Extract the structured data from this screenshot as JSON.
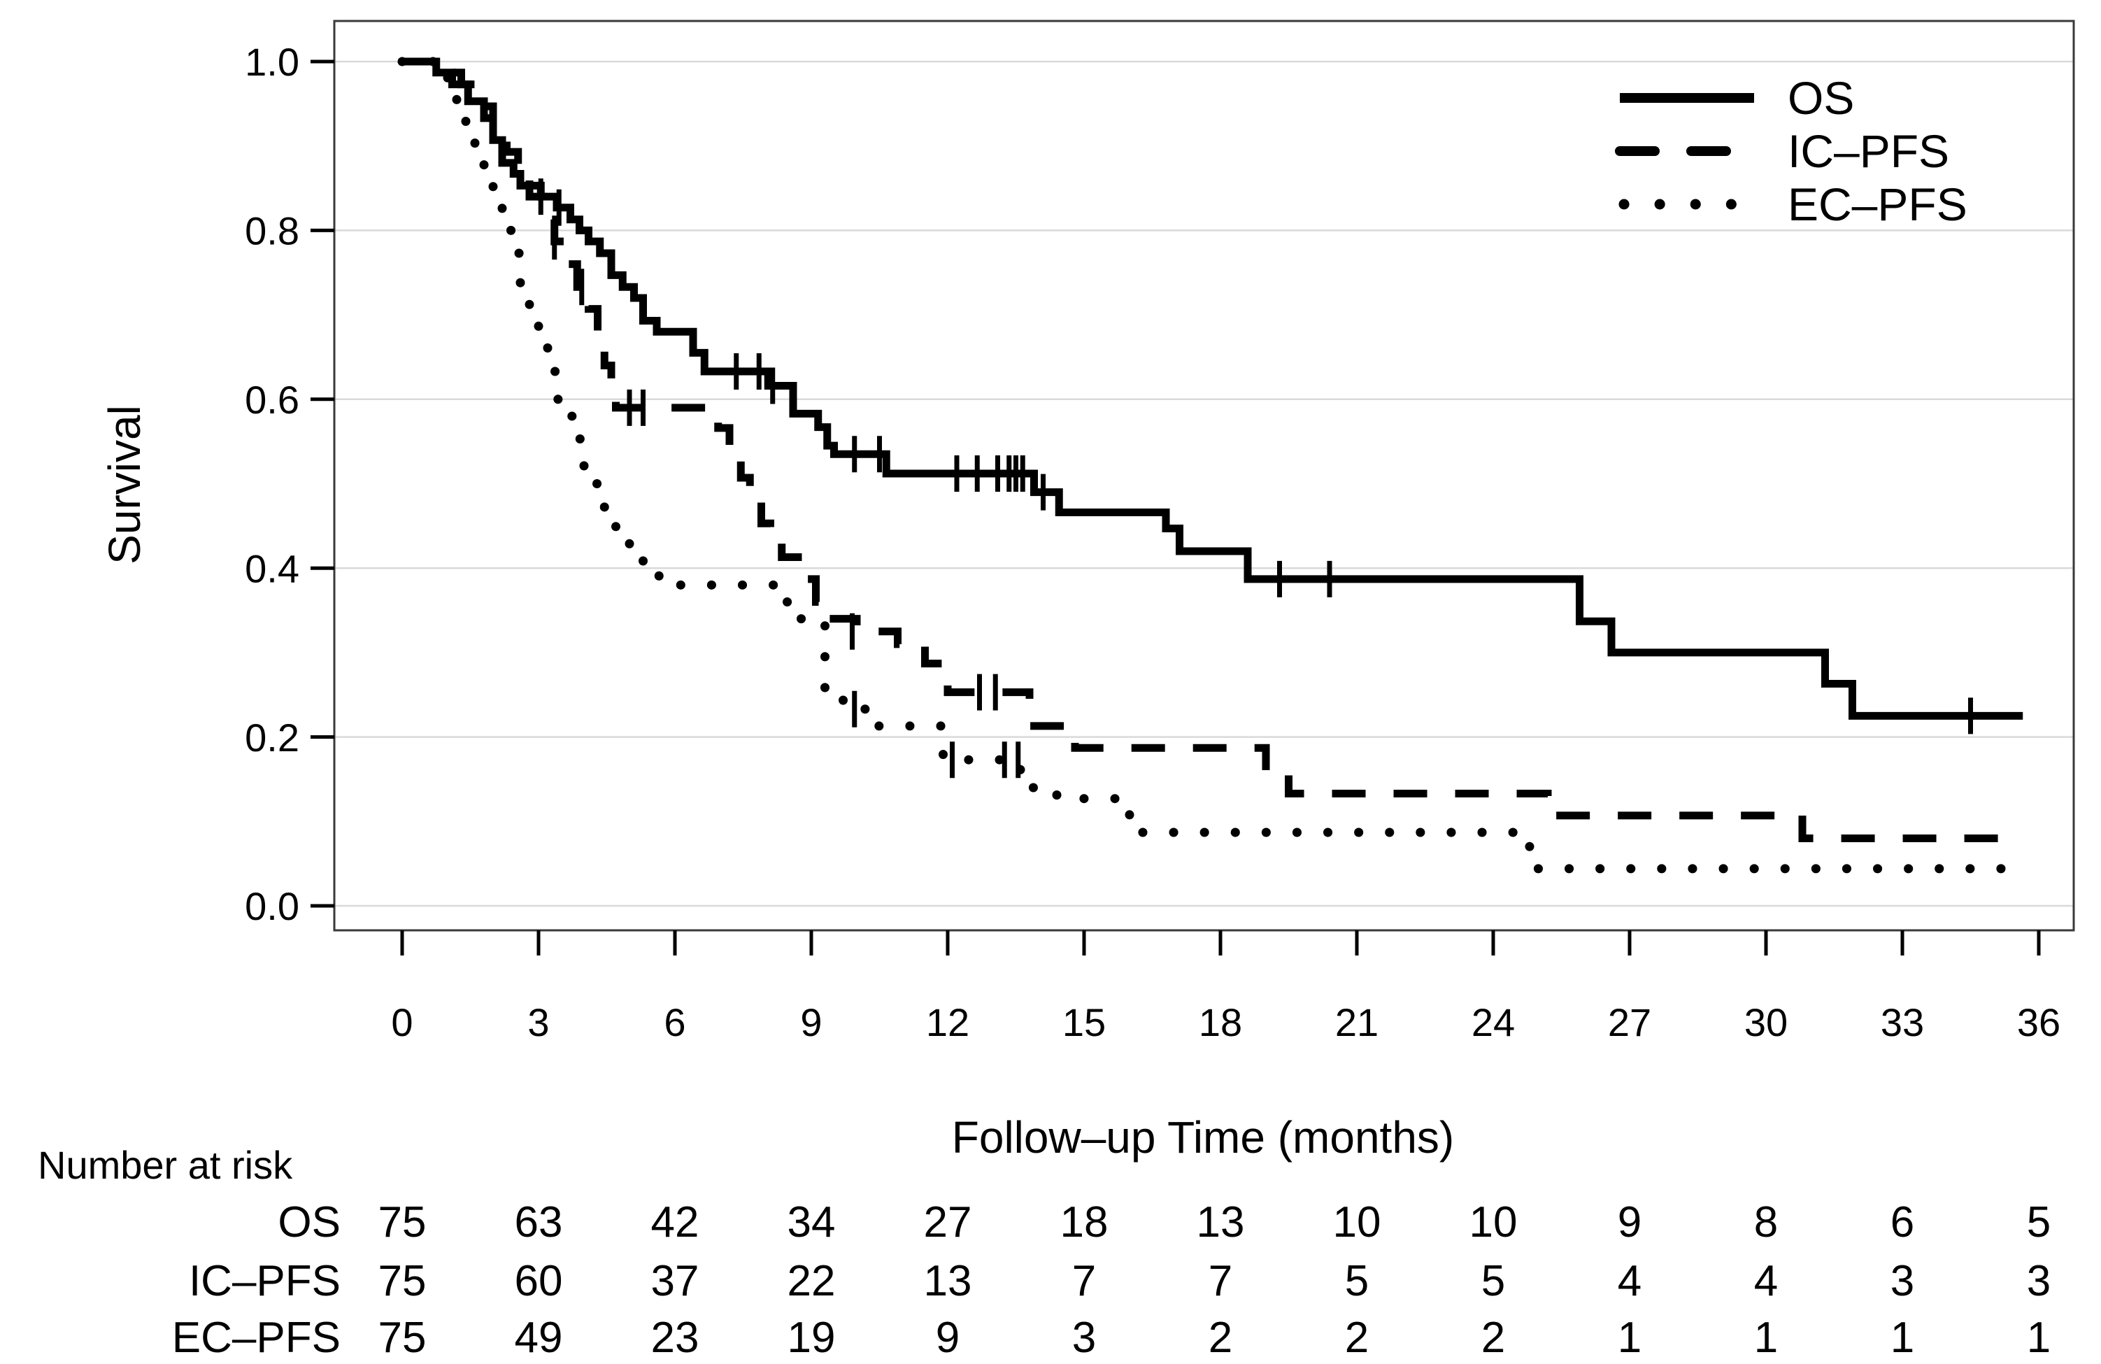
{
  "chart_data": {
    "type": "line",
    "subtype": "kaplan-meier-step",
    "title": "",
    "xlabel": "Follow–up Time (months)",
    "ylabel": "Survival",
    "xlim": [
      0,
      36
    ],
    "ylim": [
      0.0,
      1.0
    ],
    "xticks": [
      0,
      3,
      6,
      9,
      12,
      15,
      18,
      21,
      24,
      27,
      30,
      33,
      36
    ],
    "yticks": [
      0.0,
      0.2,
      0.4,
      0.6,
      0.8,
      1.0
    ],
    "ytick_labels": [
      "0.0",
      "0.2",
      "0.4",
      "0.6",
      "0.8",
      "1.0"
    ],
    "grid": "horizontal-light-gray",
    "legend_position": "top-right",
    "series": [
      {
        "name": "OS",
        "style": "solid",
        "steps": [
          [
            0,
            1.0
          ],
          [
            0.75,
            0.987
          ],
          [
            1.1,
            0.973
          ],
          [
            1.45,
            0.953
          ],
          [
            1.8,
            0.933
          ],
          [
            2.0,
            0.907
          ],
          [
            2.2,
            0.88
          ],
          [
            2.45,
            0.867
          ],
          [
            2.6,
            0.853
          ],
          [
            3.05,
            0.84
          ],
          [
            3.4,
            0.827
          ],
          [
            3.7,
            0.813
          ],
          [
            3.9,
            0.8
          ],
          [
            4.1,
            0.787
          ],
          [
            4.35,
            0.773
          ],
          [
            4.6,
            0.747
          ],
          [
            4.85,
            0.733
          ],
          [
            5.1,
            0.72
          ],
          [
            5.3,
            0.693
          ],
          [
            5.6,
            0.68
          ],
          [
            6.4,
            0.655
          ],
          [
            6.65,
            0.633
          ],
          [
            8.05,
            0.616
          ],
          [
            8.6,
            0.583
          ],
          [
            9.15,
            0.567
          ],
          [
            9.35,
            0.545
          ],
          [
            9.5,
            0.535
          ],
          [
            10.65,
            0.512
          ],
          [
            13.9,
            0.49
          ],
          [
            14.45,
            0.466
          ],
          [
            16.8,
            0.447
          ],
          [
            17.1,
            0.42
          ],
          [
            18.6,
            0.387
          ],
          [
            25.9,
            0.337
          ],
          [
            26.6,
            0.3
          ],
          [
            31.3,
            0.263
          ],
          [
            31.9,
            0.225
          ]
        ],
        "end": 35.65,
        "censors": [
          [
            3.05,
            0.84
          ],
          [
            3.45,
            0.827
          ],
          [
            7.35,
            0.633
          ],
          [
            7.85,
            0.633
          ],
          [
            8.15,
            0.616
          ],
          [
            9.95,
            0.535
          ],
          [
            10.5,
            0.535
          ],
          [
            12.2,
            0.512
          ],
          [
            12.65,
            0.512
          ],
          [
            13.1,
            0.512
          ],
          [
            13.35,
            0.512
          ],
          [
            13.5,
            0.512
          ],
          [
            13.65,
            0.512
          ],
          [
            14.1,
            0.49
          ],
          [
            19.3,
            0.387
          ],
          [
            20.4,
            0.387
          ],
          [
            34.5,
            0.225
          ]
        ]
      },
      {
        "name": "IC–PFS",
        "style": "dashed",
        "steps": [
          [
            0,
            1.0
          ],
          [
            0.9,
            0.987
          ],
          [
            1.3,
            0.973
          ],
          [
            1.7,
            0.947
          ],
          [
            2.0,
            0.92
          ],
          [
            2.3,
            0.893
          ],
          [
            2.55,
            0.867
          ],
          [
            2.8,
            0.84
          ],
          [
            3.1,
            0.813
          ],
          [
            3.35,
            0.787
          ],
          [
            3.6,
            0.76
          ],
          [
            3.85,
            0.733
          ],
          [
            4.1,
            0.707
          ],
          [
            4.3,
            0.68
          ],
          [
            4.45,
            0.64
          ],
          [
            4.6,
            0.62
          ],
          [
            4.7,
            0.59
          ],
          [
            6.95,
            0.566
          ],
          [
            7.2,
            0.533
          ],
          [
            7.45,
            0.507
          ],
          [
            7.65,
            0.48
          ],
          [
            7.9,
            0.453
          ],
          [
            8.1,
            0.433
          ],
          [
            8.35,
            0.413
          ],
          [
            8.85,
            0.387
          ],
          [
            9.1,
            0.36
          ],
          [
            9.3,
            0.34
          ],
          [
            10.0,
            0.325
          ],
          [
            10.9,
            0.31
          ],
          [
            11.5,
            0.287
          ],
          [
            12.0,
            0.253
          ],
          [
            13.8,
            0.213
          ],
          [
            14.8,
            0.187
          ],
          [
            19.0,
            0.16
          ],
          [
            19.5,
            0.133
          ],
          [
            25.2,
            0.107
          ],
          [
            30.8,
            0.08
          ]
        ],
        "end": 35.3,
        "censors": [
          [
            3.35,
            0.787
          ],
          [
            3.95,
            0.733
          ],
          [
            5.0,
            0.59
          ],
          [
            5.3,
            0.59
          ],
          [
            9.9,
            0.325
          ],
          [
            12.7,
            0.253
          ],
          [
            13.05,
            0.253
          ]
        ]
      },
      {
        "name": "EC–PFS",
        "style": "dotted",
        "steps": [
          [
            0,
            1.0
          ],
          [
            0.8,
            0.987
          ],
          [
            1.0,
            0.973
          ],
          [
            1.2,
            0.947
          ],
          [
            1.4,
            0.92
          ],
          [
            1.6,
            0.893
          ],
          [
            1.8,
            0.867
          ],
          [
            2.0,
            0.84
          ],
          [
            2.2,
            0.8
          ],
          [
            2.4,
            0.773
          ],
          [
            2.6,
            0.733
          ],
          [
            2.8,
            0.7
          ],
          [
            3.0,
            0.667
          ],
          [
            3.2,
            0.633
          ],
          [
            3.4,
            0.6
          ],
          [
            3.6,
            0.58
          ],
          [
            3.8,
            0.553
          ],
          [
            4.0,
            0.52
          ],
          [
            4.25,
            0.5
          ],
          [
            4.45,
            0.467
          ],
          [
            4.7,
            0.44
          ],
          [
            5.0,
            0.42
          ],
          [
            5.3,
            0.4
          ],
          [
            5.65,
            0.38
          ],
          [
            8.2,
            0.36
          ],
          [
            8.7,
            0.34
          ],
          [
            9.3,
            0.253
          ],
          [
            9.7,
            0.233
          ],
          [
            10.3,
            0.213
          ],
          [
            11.9,
            0.173
          ],
          [
            13.6,
            0.14
          ],
          [
            14.4,
            0.127
          ],
          [
            16.0,
            0.087
          ],
          [
            24.8,
            0.044
          ]
        ],
        "end": 35.6,
        "censors": [
          [
            9.95,
            0.233
          ],
          [
            12.1,
            0.173
          ],
          [
            13.25,
            0.173
          ],
          [
            13.55,
            0.173
          ]
        ]
      }
    ],
    "risk_table": {
      "title": "Number at risk",
      "months": [
        0,
        3,
        6,
        9,
        12,
        15,
        18,
        21,
        24,
        27,
        30,
        33,
        36
      ],
      "rows": [
        {
          "name": "OS",
          "values": [
            75,
            63,
            42,
            34,
            27,
            18,
            13,
            10,
            10,
            9,
            8,
            6,
            5
          ]
        },
        {
          "name": "IC–PFS",
          "values": [
            75,
            60,
            37,
            22,
            13,
            7,
            7,
            5,
            5,
            4,
            4,
            3,
            3
          ]
        },
        {
          "name": "EC–PFS",
          "values": [
            75,
            49,
            23,
            19,
            9,
            3,
            2,
            2,
            2,
            1,
            1,
            1,
            1
          ]
        }
      ]
    },
    "colors": {
      "curve": "#000000",
      "grid": "#d9d9d9",
      "box": "#3a3a3a",
      "background": "#ffffff"
    }
  }
}
